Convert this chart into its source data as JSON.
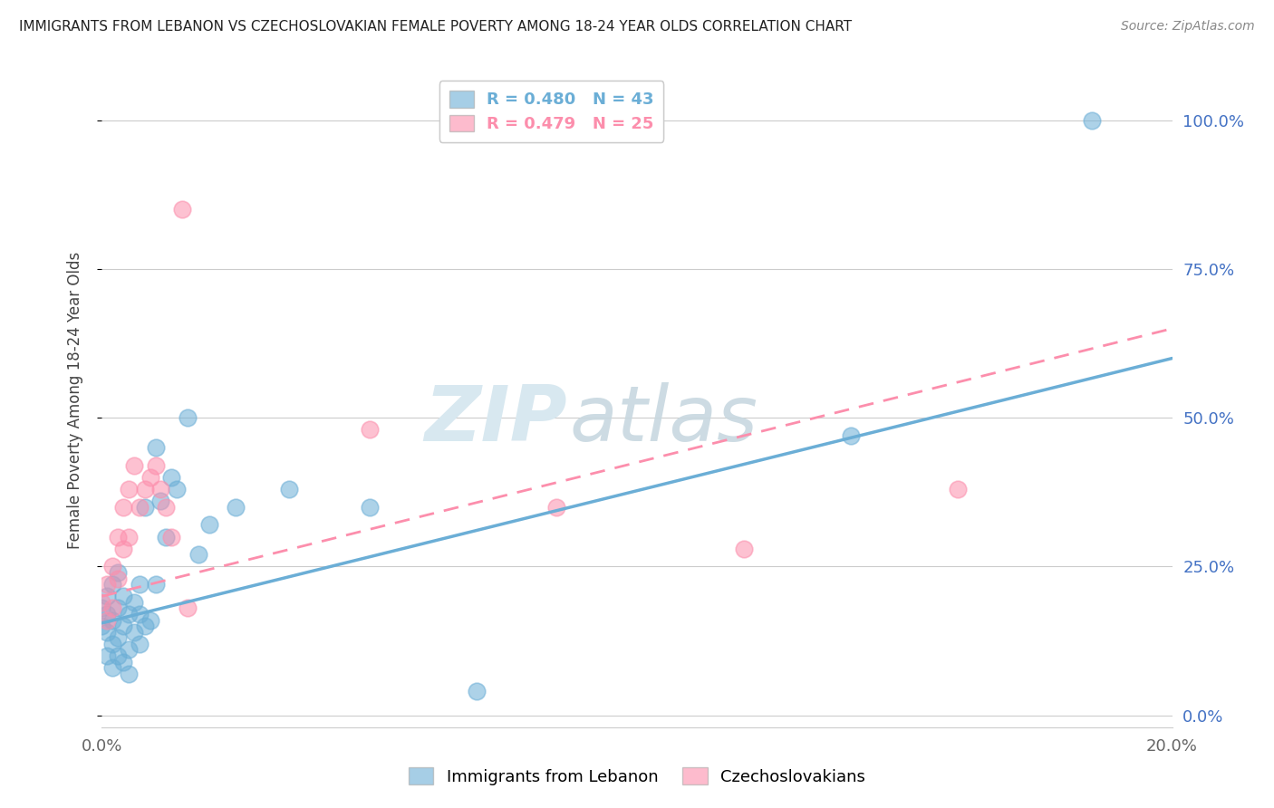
{
  "title": "IMMIGRANTS FROM LEBANON VS CZECHOSLOVAKIAN FEMALE POVERTY AMONG 18-24 YEAR OLDS CORRELATION CHART",
  "source": "Source: ZipAtlas.com",
  "ylabel": "Female Poverty Among 18-24 Year Olds",
  "yticks": [
    "0.0%",
    "25.0%",
    "50.0%",
    "75.0%",
    "100.0%"
  ],
  "ytick_vals": [
    0.0,
    0.25,
    0.5,
    0.75,
    1.0
  ],
  "xmin": 0.0,
  "xmax": 0.2,
  "ymin": -0.02,
  "ymax": 1.08,
  "legend_label1": "Immigrants from Lebanon",
  "legend_label2": "Czechoslovakians",
  "R1": 0.48,
  "N1": 43,
  "R2": 0.479,
  "N2": 25,
  "color_blue": "#6baed6",
  "color_pink": "#fc8eac",
  "lebanon_x": [
    0.0,
    0.0,
    0.001,
    0.001,
    0.001,
    0.001,
    0.002,
    0.002,
    0.002,
    0.002,
    0.003,
    0.003,
    0.003,
    0.003,
    0.004,
    0.004,
    0.004,
    0.005,
    0.005,
    0.005,
    0.006,
    0.006,
    0.007,
    0.007,
    0.007,
    0.008,
    0.008,
    0.009,
    0.01,
    0.01,
    0.011,
    0.012,
    0.013,
    0.014,
    0.016,
    0.018,
    0.02,
    0.025,
    0.035,
    0.05,
    0.07,
    0.14,
    0.185
  ],
  "lebanon_y": [
    0.15,
    0.18,
    0.1,
    0.14,
    0.17,
    0.2,
    0.08,
    0.12,
    0.16,
    0.22,
    0.1,
    0.13,
    0.18,
    0.24,
    0.09,
    0.15,
    0.2,
    0.07,
    0.11,
    0.17,
    0.14,
    0.19,
    0.12,
    0.17,
    0.22,
    0.15,
    0.35,
    0.16,
    0.45,
    0.22,
    0.36,
    0.3,
    0.4,
    0.38,
    0.5,
    0.27,
    0.32,
    0.35,
    0.38,
    0.35,
    0.04,
    0.47,
    1.0
  ],
  "czech_x": [
    0.0,
    0.001,
    0.001,
    0.002,
    0.002,
    0.003,
    0.003,
    0.004,
    0.004,
    0.005,
    0.005,
    0.006,
    0.007,
    0.008,
    0.009,
    0.01,
    0.011,
    0.012,
    0.013,
    0.015,
    0.016,
    0.05,
    0.085,
    0.12,
    0.16
  ],
  "czech_y": [
    0.19,
    0.22,
    0.16,
    0.25,
    0.18,
    0.3,
    0.23,
    0.28,
    0.35,
    0.38,
    0.3,
    0.42,
    0.35,
    0.38,
    0.4,
    0.42,
    0.38,
    0.35,
    0.3,
    0.85,
    0.18,
    0.48,
    0.35,
    0.28,
    0.38
  ],
  "line_blue_x0": 0.0,
  "line_blue_y0": 0.155,
  "line_blue_x1": 0.2,
  "line_blue_y1": 0.6,
  "line_pink_x0": 0.0,
  "line_pink_y0": 0.2,
  "line_pink_x1": 0.2,
  "line_pink_y1": 0.65
}
